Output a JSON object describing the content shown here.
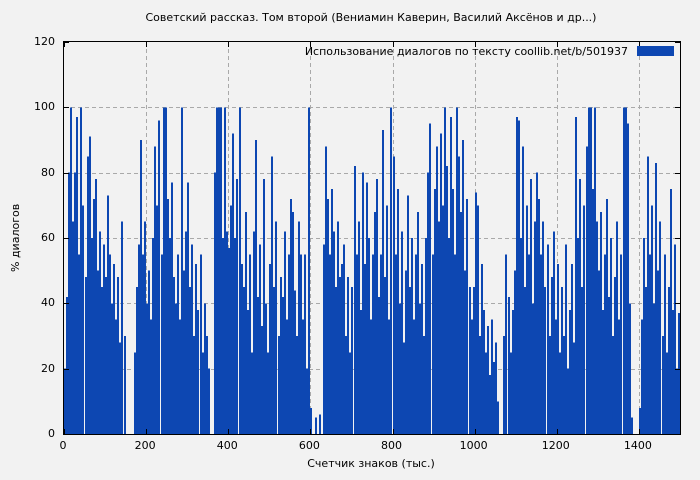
{
  "colors": {
    "background": "#f2f2f2",
    "bar": "#0d47b2",
    "grid": "#a9a9a9",
    "border": "#000000",
    "text": "#000000"
  },
  "chart_data": {
    "type": "bar",
    "style": "impulses",
    "title": "Советский рассказ. Том второй (Вениамин Каверин, Василий Аксёнов и др...)",
    "legend": "Использование диалогов по тексту  coollib.net/b/501937",
    "legend_position": "top-right",
    "xlabel": "Счетчик знаков (тыс.)",
    "ylabel": "% диалогов",
    "xlim": [
      0,
      1500
    ],
    "ylim": [
      0,
      120
    ],
    "grid": true,
    "x_ticks": [
      0,
      200,
      400,
      600,
      800,
      1000,
      1200,
      1400
    ],
    "y_ticks": [
      0,
      20,
      40,
      60,
      80,
      100,
      120
    ],
    "x_start": 0,
    "x_step": 5,
    "values": [
      20,
      42,
      80,
      100,
      65,
      80,
      97,
      55,
      100,
      70,
      48,
      85,
      91,
      60,
      72,
      78,
      50,
      62,
      45,
      58,
      48,
      73,
      55,
      40,
      52,
      35,
      48,
      28,
      65,
      30,
      0,
      0,
      0,
      0,
      25,
      45,
      58,
      90,
      55,
      65,
      40,
      50,
      35,
      60,
      88,
      70,
      96,
      55,
      100,
      100,
      72,
      60,
      77,
      48,
      40,
      55,
      35,
      100,
      50,
      62,
      77,
      45,
      58,
      30,
      52,
      38,
      55,
      25,
      40,
      30,
      20,
      0,
      0,
      80,
      100,
      100,
      100,
      60,
      100,
      62,
      57,
      70,
      92,
      60,
      78,
      100,
      52,
      45,
      68,
      38,
      55,
      25,
      62,
      90,
      42,
      58,
      33,
      78,
      40,
      25,
      52,
      85,
      45,
      65,
      30,
      48,
      42,
      62,
      35,
      55,
      72,
      68,
      44,
      30,
      65,
      55,
      35,
      55,
      20,
      100,
      8,
      0,
      5,
      0,
      6,
      0,
      58,
      88,
      72,
      55,
      75,
      62,
      45,
      65,
      48,
      52,
      58,
      30,
      48,
      25,
      45,
      82,
      55,
      65,
      38,
      80,
      52,
      77,
      60,
      35,
      55,
      68,
      78,
      42,
      55,
      93,
      48,
      70,
      35,
      100,
      85,
      55,
      75,
      40,
      62,
      28,
      50,
      73,
      45,
      60,
      35,
      55,
      68,
      40,
      52,
      30,
      60,
      80,
      95,
      55,
      75,
      88,
      65,
      92,
      70,
      100,
      82,
      60,
      97,
      75,
      55,
      100,
      85,
      68,
      90,
      50,
      72,
      45,
      35,
      45,
      74,
      70,
      30,
      52,
      38,
      25,
      33,
      18,
      35,
      22,
      28,
      10,
      0,
      0,
      30,
      55,
      42,
      25,
      38,
      50,
      97,
      96,
      60,
      88,
      45,
      70,
      55,
      78,
      40,
      65,
      80,
      72,
      55,
      65,
      45,
      58,
      30,
      48,
      62,
      35,
      52,
      25,
      45,
      30,
      58,
      20,
      38,
      52,
      28,
      97,
      60,
      78,
      45,
      70,
      88,
      100,
      100,
      75,
      100,
      65,
      50,
      68,
      38,
      55,
      72,
      42,
      60,
      30,
      48,
      65,
      35,
      55,
      100,
      100,
      95,
      40,
      5,
      0,
      0,
      0,
      8,
      35,
      60,
      45,
      85,
      55,
      70,
      40,
      83,
      50,
      65,
      30,
      55,
      25,
      45,
      75,
      38,
      58,
      20,
      37
    ]
  }
}
